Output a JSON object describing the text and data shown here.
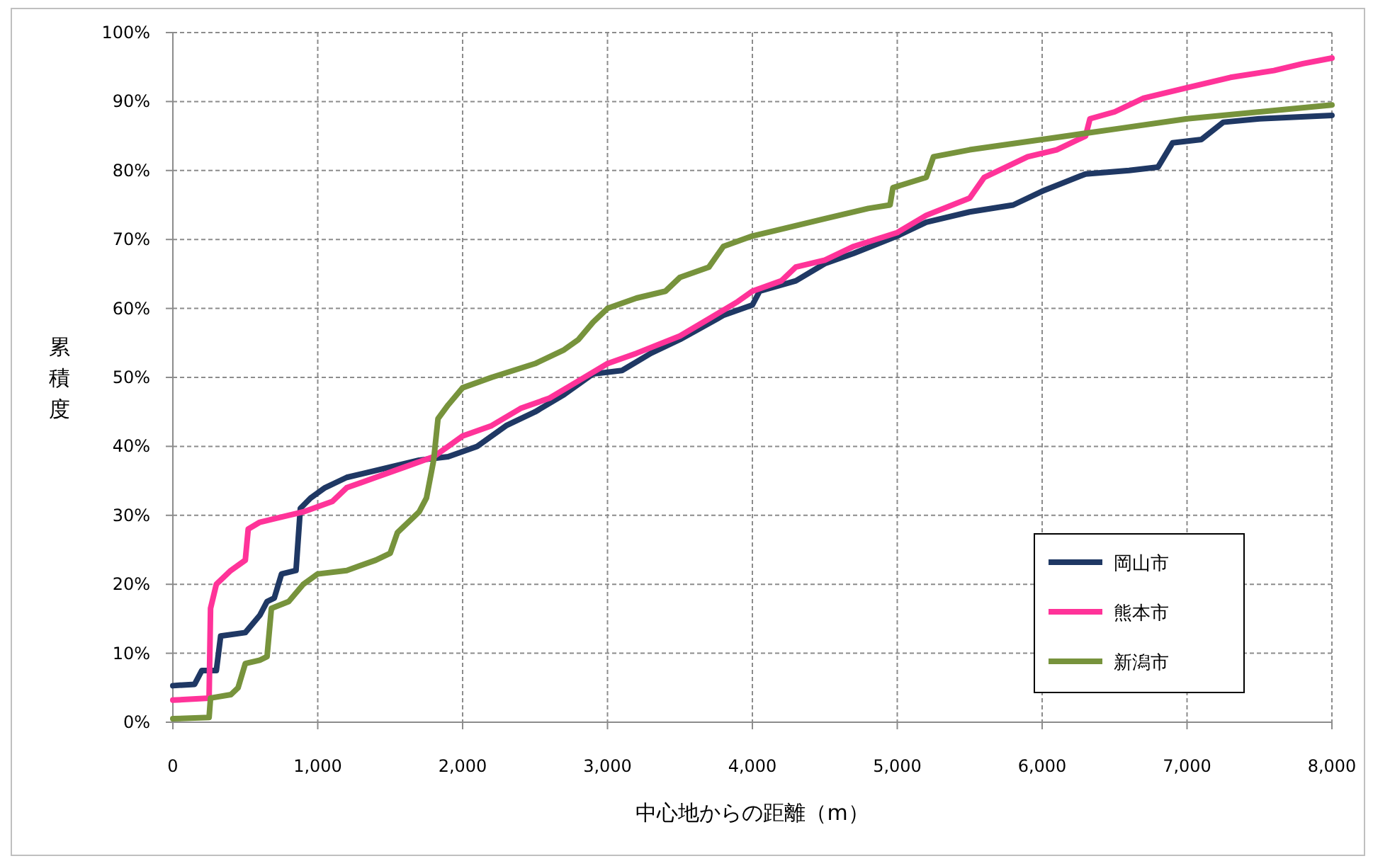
{
  "chart_data": {
    "type": "line",
    "xlabel": "中心地からの距離（m）",
    "ylabel": "累積度",
    "xlim": [
      0,
      8000
    ],
    "ylim": [
      0,
      100
    ],
    "xticks": [
      0,
      {
        "value": 1000,
        "label": "1,000"
      },
      {
        "value": 2000,
        "label": "2,000"
      },
      {
        "value": 3000,
        "label": "3,000"
      },
      {
        "value": 4000,
        "label": "4,000"
      },
      {
        "value": 5000,
        "label": "5,000"
      },
      {
        "value": 6000,
        "label": "6,000"
      },
      {
        "value": 7000,
        "label": "7,000"
      },
      {
        "value": 8000,
        "label": "8,000"
      }
    ],
    "yticks": [
      {
        "value": 0,
        "label": "0%"
      },
      {
        "value": 10,
        "label": "10%"
      },
      {
        "value": 20,
        "label": "20%"
      },
      {
        "value": 30,
        "label": "30%"
      },
      {
        "value": 40,
        "label": "40%"
      },
      {
        "value": 50,
        "label": "50%"
      },
      {
        "value": 60,
        "label": "60%"
      },
      {
        "value": 70,
        "label": "70%"
      },
      {
        "value": 80,
        "label": "80%"
      },
      {
        "value": 90,
        "label": "90%"
      },
      {
        "value": 100,
        "label": "100%"
      }
    ],
    "grid": true,
    "legend": "bottom right",
    "marker": "none",
    "line_style": "solid",
    "series": [
      {
        "name": "岡山市",
        "color": "#1f3864",
        "x": [
          0,
          150,
          200,
          300,
          330,
          500,
          600,
          650,
          700,
          750,
          850,
          880,
          950,
          1050,
          1200,
          1500,
          1700,
          1900,
          2100,
          2300,
          2500,
          2700,
          2900,
          3100,
          3300,
          3500,
          3800,
          4000,
          4050,
          4300,
          4500,
          4700,
          5000,
          5200,
          5500,
          5800,
          6000,
          6300,
          6600,
          6800,
          6900,
          7100,
          7250,
          7500,
          8000
        ],
        "values": [
          5.3,
          5.5,
          7.5,
          7.5,
          12.5,
          13,
          15.5,
          17.5,
          18,
          21.5,
          22,
          31,
          32.5,
          34,
          35.5,
          37,
          38,
          38.5,
          40,
          43,
          45,
          47.5,
          50.5,
          51,
          53.5,
          55.5,
          59,
          60.5,
          62.5,
          64,
          66.5,
          68,
          70.5,
          72.5,
          74,
          75,
          77,
          79.5,
          80,
          80.5,
          84,
          84.5,
          87,
          87.5,
          88
        ]
      },
      {
        "name": "熊本市",
        "color": "#ff3399",
        "x": [
          0,
          250,
          260,
          300,
          400,
          500,
          520,
          600,
          700,
          900,
          1100,
          1200,
          1400,
          1600,
          1800,
          1900,
          2000,
          2200,
          2400,
          2600,
          2800,
          3000,
          3200,
          3500,
          3700,
          3900,
          4000,
          4200,
          4300,
          4500,
          4700,
          5000,
          5200,
          5500,
          5600,
          5900,
          6100,
          6300,
          6330,
          6500,
          6700,
          7000,
          7300,
          7600,
          7800,
          8000
        ],
        "values": [
          3.2,
          3.5,
          16.5,
          20,
          22,
          23.5,
          28,
          29,
          29.5,
          30.5,
          32,
          34,
          35.5,
          37,
          38.5,
          40,
          41.5,
          43,
          45.5,
          47,
          49.5,
          52,
          53.5,
          56,
          58.5,
          61,
          62.5,
          64,
          66,
          67,
          69,
          71,
          73.5,
          76,
          79,
          82,
          83,
          85,
          87.5,
          88.5,
          90.5,
          92,
          93.5,
          94.5,
          95.5,
          96.3
        ]
      },
      {
        "name": "新潟市",
        "color": "#77933c",
        "x": [
          0,
          250,
          260,
          400,
          450,
          500,
          600,
          650,
          680,
          800,
          900,
          1000,
          1200,
          1400,
          1500,
          1550,
          1700,
          1750,
          1800,
          1830,
          1900,
          2000,
          2200,
          2500,
          2700,
          2800,
          2900,
          3000,
          3200,
          3400,
          3500,
          3700,
          3800,
          4000,
          4200,
          4500,
          4800,
          4950,
          4970,
          5200,
          5250,
          5500,
          6000,
          6500,
          7000,
          7500,
          8000
        ],
        "values": [
          0.5,
          0.7,
          3.5,
          4,
          5,
          8.5,
          9,
          9.5,
          16.5,
          17.5,
          20,
          21.5,
          22,
          23.5,
          24.5,
          27.5,
          30.5,
          32.5,
          38,
          44,
          46,
          48.5,
          50,
          52,
          54,
          55.5,
          58,
          60,
          61.5,
          62.5,
          64.5,
          66,
          69,
          70.5,
          71.5,
          73,
          74.5,
          75,
          77.5,
          79,
          82,
          83,
          84.5,
          86,
          87.5,
          88.5,
          89.5
        ]
      }
    ]
  }
}
